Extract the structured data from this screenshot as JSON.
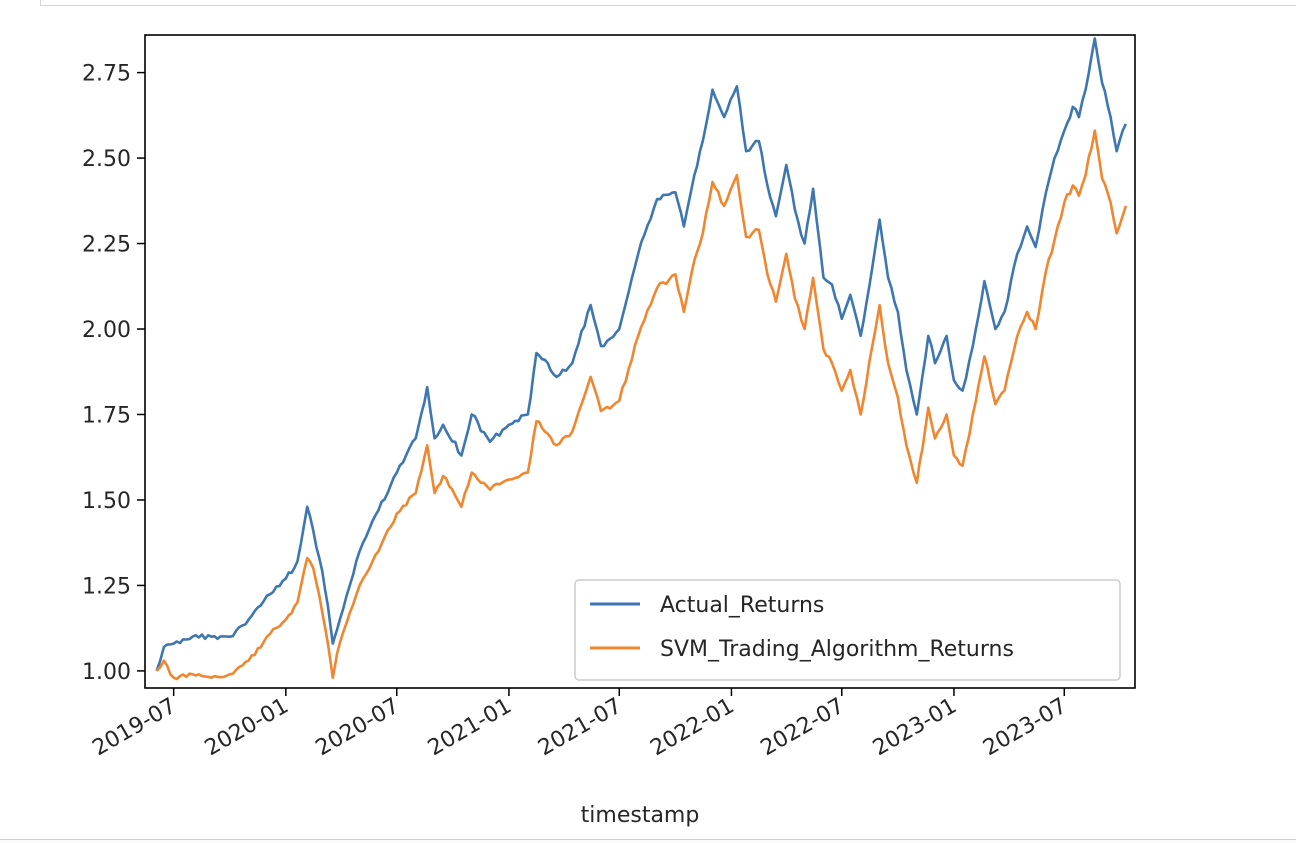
{
  "chart_data": {
    "type": "line",
    "title": "",
    "xlabel": "timestamp",
    "ylabel": "",
    "xlim": [
      "2019-05-15",
      "2023-10-25"
    ],
    "ylim": [
      0.95,
      2.86
    ],
    "x_ticks": [
      "2019-07",
      "2020-01",
      "2020-07",
      "2021-01",
      "2021-07",
      "2022-01",
      "2022-07",
      "2023-01",
      "2023-07"
    ],
    "y_ticks": [
      "1.00",
      "1.25",
      "1.50",
      "1.75",
      "2.00",
      "2.25",
      "2.50",
      "2.75"
    ],
    "legend_position": "lower-right",
    "grid": false,
    "series": [
      {
        "name": "Actual_Returns",
        "color": "#3d76b0",
        "x": [
          "2019-06-03",
          "2019-06-15",
          "2019-07-01",
          "2019-08-01",
          "2019-09-01",
          "2019-10-01",
          "2019-11-01",
          "2019-12-01",
          "2020-01-01",
          "2020-01-20",
          "2020-02-05",
          "2020-02-15",
          "2020-02-25",
          "2020-03-10",
          "2020-03-18",
          "2020-03-25",
          "2020-04-15",
          "2020-05-01",
          "2020-06-01",
          "2020-07-01",
          "2020-08-01",
          "2020-08-20",
          "2020-09-01",
          "2020-09-15",
          "2020-10-15",
          "2020-11-01",
          "2020-12-01",
          "2021-01-01",
          "2021-02-01",
          "2021-02-15",
          "2021-03-01",
          "2021-03-20",
          "2021-04-15",
          "2021-05-15",
          "2021-06-01",
          "2021-07-01",
          "2021-08-01",
          "2021-09-01",
          "2021-10-01",
          "2021-10-15",
          "2021-11-01",
          "2021-11-15",
          "2021-12-01",
          "2021-12-20",
          "2022-01-10",
          "2022-01-25",
          "2022-02-15",
          "2022-03-01",
          "2022-03-15",
          "2022-04-01",
          "2022-04-15",
          "2022-05-01",
          "2022-05-15",
          "2022-06-01",
          "2022-06-15",
          "2022-07-01",
          "2022-07-15",
          "2022-08-01",
          "2022-08-20",
          "2022-09-01",
          "2022-09-15",
          "2022-10-01",
          "2022-10-15",
          "2022-11-01",
          "2022-11-20",
          "2022-12-01",
          "2022-12-20",
          "2023-01-01",
          "2023-01-15",
          "2023-02-01",
          "2023-02-20",
          "2023-03-10",
          "2023-03-25",
          "2023-04-15",
          "2023-05-01",
          "2023-05-15",
          "2023-06-01",
          "2023-06-15",
          "2023-07-01",
          "2023-07-15",
          "2023-07-25",
          "2023-08-05",
          "2023-08-20",
          "2023-09-01",
          "2023-09-15",
          "2023-09-25",
          "2023-10-10"
        ],
        "values": [
          1.0,
          1.07,
          1.08,
          1.1,
          1.1,
          1.1,
          1.15,
          1.22,
          1.27,
          1.32,
          1.48,
          1.41,
          1.33,
          1.19,
          1.08,
          1.12,
          1.25,
          1.35,
          1.47,
          1.58,
          1.68,
          1.83,
          1.68,
          1.72,
          1.63,
          1.75,
          1.67,
          1.72,
          1.75,
          1.93,
          1.91,
          1.86,
          1.9,
          2.07,
          1.95,
          2.0,
          2.22,
          2.38,
          2.4,
          2.3,
          2.45,
          2.55,
          2.7,
          2.62,
          2.71,
          2.52,
          2.55,
          2.42,
          2.33,
          2.48,
          2.35,
          2.25,
          2.41,
          2.15,
          2.13,
          2.03,
          2.1,
          1.98,
          2.18,
          2.32,
          2.15,
          2.05,
          1.88,
          1.75,
          1.98,
          1.9,
          1.98,
          1.85,
          1.82,
          1.95,
          2.14,
          2.0,
          2.05,
          2.22,
          2.3,
          2.24,
          2.4,
          2.5,
          2.58,
          2.65,
          2.62,
          2.7,
          2.85,
          2.72,
          2.62,
          2.52,
          2.6
        ]
      },
      {
        "name": "SVM_Trading_Algorithm_Returns",
        "color": "#f0862f",
        "x": [
          "2019-06-03",
          "2019-06-15",
          "2019-07-01",
          "2019-08-01",
          "2019-09-01",
          "2019-10-01",
          "2019-11-01",
          "2019-12-01",
          "2020-01-01",
          "2020-01-20",
          "2020-02-05",
          "2020-02-15",
          "2020-02-25",
          "2020-03-10",
          "2020-03-18",
          "2020-03-25",
          "2020-04-15",
          "2020-05-01",
          "2020-06-01",
          "2020-07-01",
          "2020-08-01",
          "2020-08-20",
          "2020-09-01",
          "2020-09-15",
          "2020-10-15",
          "2020-11-01",
          "2020-12-01",
          "2021-01-01",
          "2021-02-01",
          "2021-02-15",
          "2021-03-01",
          "2021-03-20",
          "2021-04-15",
          "2021-05-15",
          "2021-06-01",
          "2021-07-01",
          "2021-08-01",
          "2021-09-01",
          "2021-10-01",
          "2021-10-15",
          "2021-11-01",
          "2021-11-15",
          "2021-12-01",
          "2021-12-20",
          "2022-01-10",
          "2022-01-25",
          "2022-02-15",
          "2022-03-01",
          "2022-03-15",
          "2022-04-01",
          "2022-04-15",
          "2022-05-01",
          "2022-05-15",
          "2022-06-01",
          "2022-06-15",
          "2022-07-01",
          "2022-07-15",
          "2022-08-01",
          "2022-08-20",
          "2022-09-01",
          "2022-09-15",
          "2022-10-01",
          "2022-10-15",
          "2022-11-01",
          "2022-11-20",
          "2022-12-01",
          "2022-12-20",
          "2023-01-01",
          "2023-01-15",
          "2023-02-01",
          "2023-02-20",
          "2023-03-10",
          "2023-03-25",
          "2023-04-15",
          "2023-05-01",
          "2023-05-15",
          "2023-06-01",
          "2023-06-15",
          "2023-07-01",
          "2023-07-15",
          "2023-07-25",
          "2023-08-05",
          "2023-08-20",
          "2023-09-01",
          "2023-09-15",
          "2023-09-25",
          "2023-10-10"
        ],
        "values": [
          1.0,
          1.03,
          0.98,
          0.99,
          0.98,
          0.99,
          1.03,
          1.1,
          1.15,
          1.2,
          1.33,
          1.3,
          1.22,
          1.08,
          0.98,
          1.05,
          1.17,
          1.25,
          1.35,
          1.46,
          1.52,
          1.66,
          1.52,
          1.57,
          1.48,
          1.58,
          1.53,
          1.56,
          1.58,
          1.73,
          1.7,
          1.66,
          1.7,
          1.86,
          1.76,
          1.79,
          1.98,
          2.12,
          2.16,
          2.05,
          2.2,
          2.28,
          2.43,
          2.36,
          2.45,
          2.27,
          2.29,
          2.16,
          2.08,
          2.22,
          2.09,
          2.0,
          2.15,
          1.94,
          1.9,
          1.82,
          1.88,
          1.75,
          1.95,
          2.07,
          1.9,
          1.8,
          1.66,
          1.55,
          1.77,
          1.68,
          1.75,
          1.63,
          1.6,
          1.75,
          1.92,
          1.78,
          1.82,
          1.98,
          2.05,
          2.0,
          2.17,
          2.26,
          2.37,
          2.42,
          2.39,
          2.45,
          2.58,
          2.44,
          2.37,
          2.28,
          2.36
        ]
      }
    ]
  }
}
